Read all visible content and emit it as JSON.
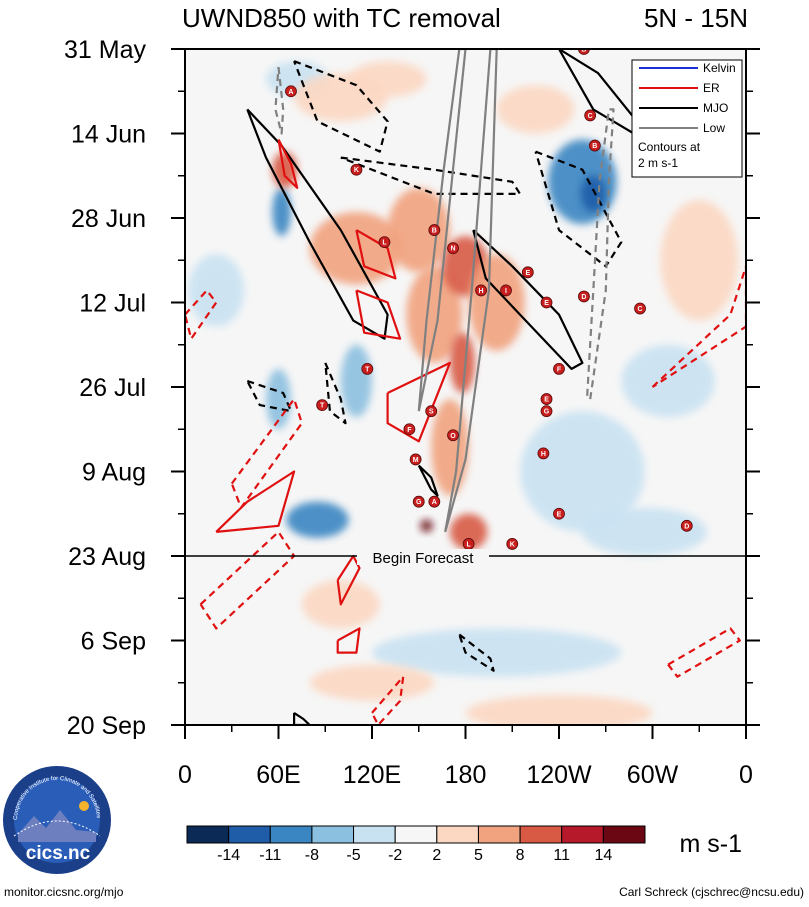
{
  "chart_data": {
    "type": "heatmap",
    "title_left": "UWND850 with TC removal",
    "title_right": "5N - 15N",
    "x_tick_labels": [
      "0",
      "60E",
      "120E",
      "180",
      "120W",
      "60W",
      "0"
    ],
    "x_ticks_deg": [
      0,
      60,
      120,
      180,
      240,
      300,
      360
    ],
    "xlim_deg": [
      0,
      360
    ],
    "y_tick_labels": [
      "31 May",
      "14 Jun",
      "28 Jun",
      "12 Jul",
      "26 Jul",
      "9 Aug",
      "23 Aug",
      "6 Sep",
      "20 Sep"
    ],
    "y_ticks_day": [
      0,
      14,
      28,
      42,
      56,
      70,
      84,
      98,
      112
    ],
    "ylim_day": [
      0,
      112
    ],
    "forecast_day": 84,
    "forecast_label": "Begin Forecast",
    "legend": {
      "entries": [
        {
          "name": "Kelvin",
          "color": "#1f2fd6"
        },
        {
          "name": "ER",
          "color": "#e01010"
        },
        {
          "name": "MJO",
          "color": "#000000"
        },
        {
          "name": "Low",
          "color": "#808080"
        }
      ],
      "note_line1": "Contours at",
      "note_line2": "2 m s-1"
    },
    "colorbar": {
      "colors": [
        "#0b2a55",
        "#1f5da8",
        "#3a86c2",
        "#8cc0e0",
        "#c9e2f2",
        "#f6f6f6",
        "#fcd8c3",
        "#f1a37f",
        "#d85a45",
        "#b5192a",
        "#6b0713"
      ],
      "labels": [
        "-14",
        "-11",
        "-8",
        "-5",
        "-2",
        "2",
        "5",
        "8",
        "11",
        "14"
      ],
      "units": "m s-1"
    },
    "anomalies": [
      {
        "lon": 62,
        "day": 27,
        "lon_r": 6,
        "day_r": 4,
        "level": -3
      },
      {
        "lon": 64,
        "day": 20,
        "lon_r": 8,
        "day_r": 3,
        "level": 3
      },
      {
        "lon": 72,
        "day": 5,
        "lon_r": 20,
        "day_r": 3,
        "level": -1
      },
      {
        "lon": 100,
        "day": 8,
        "lon_r": 30,
        "day_r": 4,
        "level": 1
      },
      {
        "lon": 110,
        "day": 33,
        "lon_r": 30,
        "day_r": 6,
        "level": 2
      },
      {
        "lon": 150,
        "day": 30,
        "lon_r": 20,
        "day_r": 7,
        "level": 2
      },
      {
        "lon": 160,
        "day": 44,
        "lon_r": 18,
        "day_r": 8,
        "level": 2
      },
      {
        "lon": 180,
        "day": 36,
        "lon_r": 15,
        "day_r": 5,
        "level": 3
      },
      {
        "lon": 178,
        "day": 52,
        "lon_r": 8,
        "day_r": 5,
        "level": 3
      },
      {
        "lon": 170,
        "day": 66,
        "lon_r": 12,
        "day_r": 8,
        "level": 2
      },
      {
        "lon": 155,
        "day": 79,
        "lon_r": 4,
        "day_r": 1,
        "level": 5
      },
      {
        "lon": 182,
        "day": 80,
        "lon_r": 12,
        "day_r": 3,
        "level": 3
      },
      {
        "lon": 200,
        "day": 42,
        "lon_r": 18,
        "day_r": 8,
        "level": 2
      },
      {
        "lon": 60,
        "day": 58,
        "lon_r": 8,
        "day_r": 5,
        "level": -2
      },
      {
        "lon": 85,
        "day": 78,
        "lon_r": 20,
        "day_r": 3,
        "level": -3
      },
      {
        "lon": 110,
        "day": 55,
        "lon_r": 10,
        "day_r": 6,
        "level": -2
      },
      {
        "lon": 255,
        "day": 22,
        "lon_r": 22,
        "day_r": 7,
        "level": -3
      },
      {
        "lon": 262,
        "day": 24,
        "lon_r": 8,
        "day_r": 3,
        "level": -4
      },
      {
        "lon": 255,
        "day": 70,
        "lon_r": 40,
        "day_r": 10,
        "level": -1
      },
      {
        "lon": 310,
        "day": 55,
        "lon_r": 30,
        "day_r": 6,
        "level": -1
      },
      {
        "lon": 20,
        "day": 40,
        "lon_r": 18,
        "day_r": 6,
        "level": -1
      },
      {
        "lon": 200,
        "day": 100,
        "lon_r": 80,
        "day_r": 4,
        "level": -1
      },
      {
        "lon": 120,
        "day": 105,
        "lon_r": 40,
        "day_r": 3,
        "level": 1
      },
      {
        "lon": 240,
        "day": 110,
        "lon_r": 60,
        "day_r": 3,
        "level": 1
      },
      {
        "lon": 330,
        "day": 35,
        "lon_r": 25,
        "day_r": 10,
        "level": 1
      },
      {
        "lon": 130,
        "day": 5,
        "lon_r": 25,
        "day_r": 3,
        "level": 1
      },
      {
        "lon": 225,
        "day": 10,
        "lon_r": 25,
        "day_r": 4,
        "level": 1
      },
      {
        "lon": 100,
        "day": 92,
        "lon_r": 25,
        "day_r": 4,
        "level": 1
      },
      {
        "lon": 295,
        "day": 80,
        "lon_r": 40,
        "day_r": 4,
        "level": -1
      }
    ],
    "contours": [
      {
        "kind": "MJO",
        "sign": "pos",
        "points": [
          [
            40,
            10
          ],
          [
            62,
            16
          ],
          [
            100,
            30
          ],
          [
            130,
            44
          ],
          [
            128,
            48
          ],
          [
            108,
            45
          ],
          [
            80,
            32
          ],
          [
            52,
            18
          ],
          [
            40,
            10
          ]
        ]
      },
      {
        "kind": "MJO",
        "sign": "pos",
        "points": [
          [
            185,
            30
          ],
          [
            210,
            36
          ],
          [
            240,
            44
          ],
          [
            255,
            52
          ],
          [
            248,
            53
          ],
          [
            215,
            44
          ],
          [
            193,
            38
          ],
          [
            185,
            30
          ]
        ]
      },
      {
        "kind": "MJO",
        "sign": "pos",
        "points": [
          [
            240,
            0
          ],
          [
            265,
            4
          ],
          [
            290,
            12
          ],
          [
            288,
            14
          ],
          [
            262,
            10
          ],
          [
            240,
            0
          ]
        ]
      },
      {
        "kind": "MJO",
        "sign": "pos",
        "points": [
          [
            150,
            69
          ],
          [
            158,
            71
          ],
          [
            162,
            74
          ],
          [
            158,
            73
          ],
          [
            150,
            69
          ]
        ]
      },
      {
        "kind": "MJO",
        "sign": "pos",
        "points": [
          [
            70,
            110
          ],
          [
            76,
            111
          ],
          [
            80,
            112
          ],
          [
            70,
            112
          ],
          [
            70,
            110
          ]
        ]
      },
      {
        "kind": "MJO",
        "sign": "neg",
        "points": [
          [
            70,
            2
          ],
          [
            110,
            6
          ],
          [
            130,
            12
          ],
          [
            125,
            17
          ],
          [
            85,
            12
          ],
          [
            70,
            2
          ]
        ]
      },
      {
        "kind": "MJO",
        "sign": "neg",
        "points": [
          [
            100,
            18
          ],
          [
            160,
            20
          ],
          [
            210,
            22
          ],
          [
            215,
            24
          ],
          [
            160,
            24
          ],
          [
            100,
            18
          ]
        ]
      },
      {
        "kind": "MJO",
        "sign": "neg",
        "points": [
          [
            225,
            17
          ],
          [
            255,
            20
          ],
          [
            280,
            32
          ],
          [
            270,
            36
          ],
          [
            240,
            30
          ],
          [
            225,
            17
          ]
        ]
      },
      {
        "kind": "MJO",
        "sign": "neg",
        "points": [
          [
            90,
            52
          ],
          [
            100,
            58
          ],
          [
            103,
            62
          ],
          [
            93,
            60
          ],
          [
            90,
            52
          ]
        ]
      },
      {
        "kind": "MJO",
        "sign": "neg",
        "points": [
          [
            40,
            55
          ],
          [
            63,
            57
          ],
          [
            68,
            60
          ],
          [
            48,
            59
          ],
          [
            40,
            55
          ]
        ]
      },
      {
        "kind": "MJO",
        "sign": "neg",
        "points": [
          [
            176,
            97
          ],
          [
            196,
            101
          ],
          [
            198,
            103
          ],
          [
            180,
            100
          ],
          [
            176,
            97
          ]
        ]
      },
      {
        "kind": "ER",
        "sign": "pos",
        "points": [
          [
            60,
            15
          ],
          [
            68,
            19
          ],
          [
            72,
            23
          ],
          [
            64,
            21
          ],
          [
            60,
            15
          ]
        ]
      },
      {
        "kind": "ER",
        "sign": "pos",
        "points": [
          [
            110,
            30
          ],
          [
            130,
            33
          ],
          [
            135,
            38
          ],
          [
            115,
            36
          ],
          [
            110,
            30
          ]
        ]
      },
      {
        "kind": "ER",
        "sign": "pos",
        "points": [
          [
            110,
            40
          ],
          [
            130,
            42
          ],
          [
            138,
            48
          ],
          [
            115,
            47
          ],
          [
            110,
            40
          ]
        ]
      },
      {
        "kind": "ER",
        "sign": "pos",
        "points": [
          [
            130,
            57
          ],
          [
            170,
            52
          ],
          [
            150,
            65
          ],
          [
            130,
            62
          ],
          [
            130,
            57
          ]
        ]
      },
      {
        "kind": "ER",
        "sign": "pos",
        "points": [
          [
            20,
            80
          ],
          [
            40,
            75
          ],
          [
            70,
            70
          ],
          [
            60,
            79
          ],
          [
            20,
            80
          ]
        ]
      },
      {
        "kind": "ER",
        "sign": "pos",
        "points": [
          [
            98,
            88
          ],
          [
            108,
            84
          ],
          [
            112,
            86
          ],
          [
            100,
            92
          ],
          [
            98,
            88
          ]
        ]
      },
      {
        "kind": "ER",
        "sign": "pos",
        "points": [
          [
            98,
            98
          ],
          [
            112,
            96
          ],
          [
            110,
            100
          ],
          [
            98,
            100
          ],
          [
            98,
            98
          ]
        ]
      },
      {
        "kind": "ER",
        "sign": "neg",
        "points": [
          [
            0,
            44
          ],
          [
            14,
            40
          ],
          [
            20,
            42
          ],
          [
            4,
            48
          ],
          [
            0,
            44
          ]
        ]
      },
      {
        "kind": "ER",
        "sign": "neg",
        "points": [
          [
            30,
            72
          ],
          [
            70,
            58
          ],
          [
            75,
            62
          ],
          [
            36,
            76
          ],
          [
            30,
            72
          ]
        ]
      },
      {
        "kind": "ER",
        "sign": "neg",
        "points": [
          [
            10,
            92
          ],
          [
            60,
            80
          ],
          [
            70,
            84
          ],
          [
            20,
            96
          ],
          [
            10,
            92
          ]
        ]
      },
      {
        "kind": "ER",
        "sign": "neg",
        "points": [
          [
            120,
            110
          ],
          [
            140,
            104
          ],
          [
            138,
            108
          ],
          [
            124,
            112
          ],
          [
            120,
            110
          ]
        ]
      },
      {
        "kind": "ER",
        "sign": "neg",
        "points": [
          [
            310,
            102
          ],
          [
            350,
            96
          ],
          [
            356,
            98
          ],
          [
            316,
            104
          ],
          [
            310,
            102
          ]
        ]
      },
      {
        "kind": "ER",
        "sign": "neg",
        "points": [
          [
            300,
            56
          ],
          [
            350,
            44
          ],
          [
            360,
            36
          ],
          [
            360,
            46
          ],
          [
            300,
            56
          ]
        ]
      },
      {
        "kind": "Low",
        "sign": "pos",
        "points": [
          [
            167,
            80
          ],
          [
            180,
            68
          ],
          [
            195,
            40
          ],
          [
            200,
            0
          ],
          [
            196,
            0
          ],
          [
            184,
            40
          ],
          [
            174,
            70
          ],
          [
            167,
            80
          ]
        ]
      },
      {
        "kind": "Low",
        "sign": "pos",
        "points": [
          [
            150,
            60
          ],
          [
            162,
            45
          ],
          [
            172,
            20
          ],
          [
            180,
            0
          ],
          [
            176,
            0
          ],
          [
            166,
            20
          ],
          [
            155,
            45
          ],
          [
            150,
            60
          ]
        ]
      },
      {
        "kind": "Low",
        "sign": "neg",
        "points": [
          [
            260,
            58
          ],
          [
            270,
            40
          ],
          [
            272,
            22
          ],
          [
            275,
            10
          ],
          [
            272,
            10
          ],
          [
            266,
            22
          ],
          [
            262,
            40
          ],
          [
            258,
            58
          ]
        ]
      },
      {
        "kind": "Low",
        "sign": "neg",
        "points": [
          [
            60,
            3
          ],
          [
            63,
            10
          ],
          [
            62,
            14
          ],
          [
            58,
            10
          ],
          [
            60,
            3
          ]
        ]
      }
    ],
    "tcs": [
      {
        "letter": "B",
        "lon": 256,
        "day": 0
      },
      {
        "letter": "A",
        "lon": 68,
        "day": 7
      },
      {
        "letter": "C",
        "lon": 260,
        "day": 11
      },
      {
        "letter": "B",
        "lon": 263,
        "day": 16
      },
      {
        "letter": "K",
        "lon": 110,
        "day": 20
      },
      {
        "letter": "B",
        "lon": 160,
        "day": 30
      },
      {
        "letter": "L",
        "lon": 128,
        "day": 32
      },
      {
        "letter": "N",
        "lon": 172,
        "day": 33
      },
      {
        "letter": "E",
        "lon": 220,
        "day": 37
      },
      {
        "letter": "H",
        "lon": 190,
        "day": 40
      },
      {
        "letter": "I",
        "lon": 206,
        "day": 40
      },
      {
        "letter": "D",
        "lon": 256,
        "day": 41
      },
      {
        "letter": "E",
        "lon": 232,
        "day": 42
      },
      {
        "letter": "C",
        "lon": 292,
        "day": 43
      },
      {
        "letter": "F",
        "lon": 240,
        "day": 53
      },
      {
        "letter": "T",
        "lon": 117,
        "day": 53
      },
      {
        "letter": "E",
        "lon": 232,
        "day": 58
      },
      {
        "letter": "G",
        "lon": 232,
        "day": 60
      },
      {
        "letter": "T",
        "lon": 88,
        "day": 59
      },
      {
        "letter": "S",
        "lon": 158,
        "day": 60
      },
      {
        "letter": "F",
        "lon": 144,
        "day": 63
      },
      {
        "letter": "O",
        "lon": 172,
        "day": 64
      },
      {
        "letter": "H",
        "lon": 230,
        "day": 67
      },
      {
        "letter": "M",
        "lon": 148,
        "day": 68
      },
      {
        "letter": "G",
        "lon": 150,
        "day": 75
      },
      {
        "letter": "A",
        "lon": 160,
        "day": 75
      },
      {
        "letter": "E",
        "lon": 240,
        "day": 77
      },
      {
        "letter": "D",
        "lon": 322,
        "day": 79
      },
      {
        "letter": "L",
        "lon": 182,
        "day": 82
      },
      {
        "letter": "K",
        "lon": 210,
        "day": 82
      }
    ]
  },
  "logo": {
    "text": "cics.nc",
    "ring_text": "Cooperative Institute for Climate and Satellites"
  },
  "footer": {
    "left": "monitor.cicsnc.org/mjo",
    "right": "Carl Schreck (cjschrec@ncsu.edu)"
  },
  "colors": {
    "kelvin": "#1f2fd6",
    "er": "#e01010",
    "mjo": "#000000",
    "low": "#808080"
  }
}
